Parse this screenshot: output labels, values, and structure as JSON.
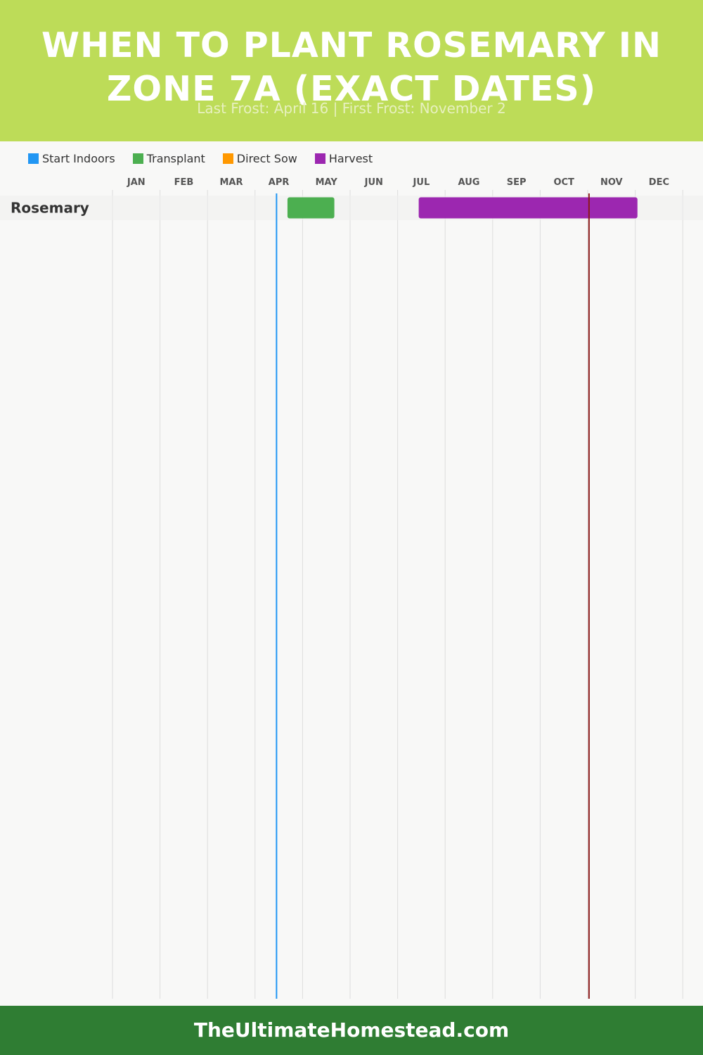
{
  "header": {
    "title": "WHEN TO PLANT ROSEMARY IN ZONE 7A (EXACT DATES)",
    "subtitle": "Last Frost: April 16 | First Frost: November 2"
  },
  "legend": [
    {
      "label": "Start Indoors",
      "color": "#2196f3"
    },
    {
      "label": "Transplant",
      "color": "#4caf50"
    },
    {
      "label": "Direct Sow",
      "color": "#ff9800"
    },
    {
      "label": "Harvest",
      "color": "#9c27b0"
    }
  ],
  "footer": {
    "text": "TheUltimateHomestead.com"
  },
  "chart_data": {
    "type": "gantt",
    "x_axis": {
      "ticks": [
        "JAN",
        "FEB",
        "MAR",
        "APR",
        "MAY",
        "JUN",
        "JUL",
        "AUG",
        "SEP",
        "OCT",
        "NOV",
        "DEC"
      ],
      "range": [
        "Jan 1",
        "Dec 31"
      ],
      "grid": true
    },
    "rows": [
      {
        "crop": "Rosemary",
        "periods": [
          {
            "activity": "Transplant",
            "start": "Apr 23",
            "end": "May 23",
            "color": "#4caf50"
          },
          {
            "activity": "Harvest",
            "start": "Jul 16",
            "end": "Dec 3",
            "color": "#9c27b0"
          }
        ]
      }
    ],
    "reference_lines": [
      {
        "label": "Last Frost",
        "date": "Apr 16",
        "color": "#2196f3"
      },
      {
        "label": "First Frost",
        "date": "Nov 2",
        "color": "#8b1a1a"
      }
    ]
  }
}
